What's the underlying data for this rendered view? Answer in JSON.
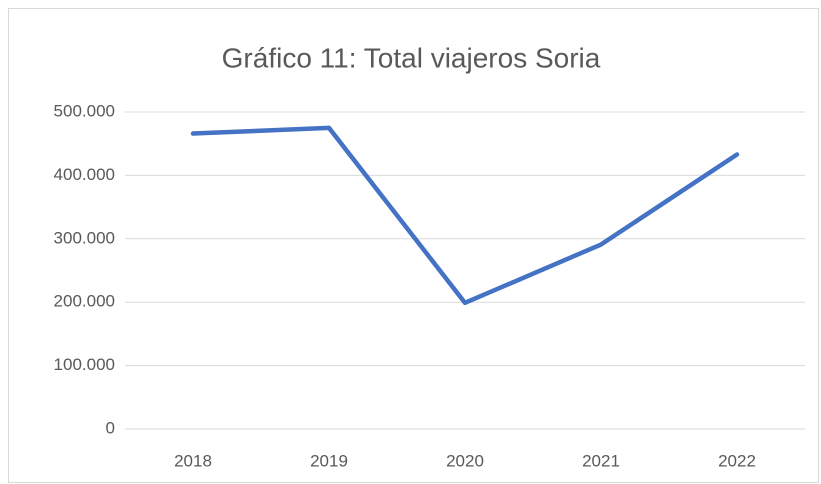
{
  "chart_data": {
    "type": "line",
    "title": "Gráfico 11: Total viajeros Soria",
    "categories": [
      "2018",
      "2019",
      "2020",
      "2021",
      "2022"
    ],
    "series": [
      {
        "name": "Total viajeros",
        "color": "#4472c4",
        "values": [
          466000,
          475000,
          199000,
          291000,
          433000
        ]
      }
    ],
    "ylim": [
      0,
      500000
    ],
    "yticks": [
      0,
      {
        "value": 100000,
        "label": "100.000"
      },
      {
        "value": 200000,
        "label": "200.000"
      },
      {
        "value": 300000,
        "label": "300.000"
      },
      {
        "value": 400000,
        "label": "400.000"
      },
      {
        "value": 500000,
        "label": "500.000"
      }
    ],
    "grid": true
  }
}
